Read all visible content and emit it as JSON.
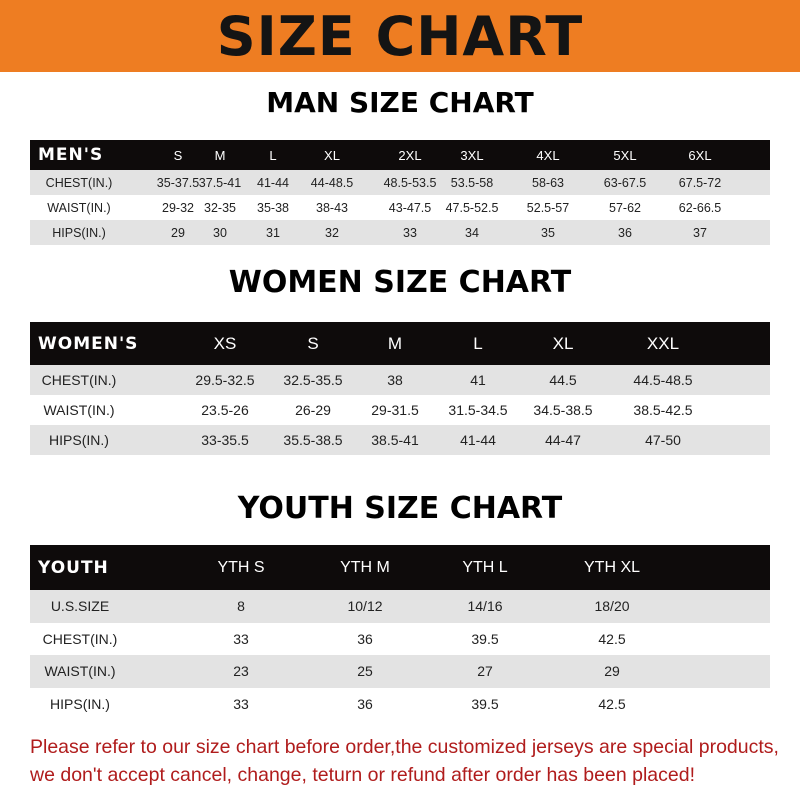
{
  "title": "SIZE CHART",
  "men": {
    "title": "MAN SIZE CHART",
    "header": [
      "MEN'S",
      "S",
      "M",
      "L",
      "XL",
      "2XL",
      "3XL",
      "4XL",
      "5XL",
      "6XL"
    ],
    "rows": [
      [
        "CHEST(IN.)",
        "35-37.5",
        "37.5-41",
        "41-44",
        "44-48.5",
        "48.5-53.5",
        "53.5-58",
        "58-63",
        "63-67.5",
        "67.5-72"
      ],
      [
        "WAIST(IN.)",
        "29-32",
        "32-35",
        "35-38",
        "38-43",
        "43-47.5",
        "47.5-52.5",
        "52.5-57",
        "57-62",
        "62-66.5"
      ],
      [
        "HIPS(IN.)",
        "29",
        "30",
        "31",
        "32",
        "33",
        "34",
        "35",
        "36",
        "37"
      ]
    ]
  },
  "women": {
    "title": "WOMEN SIZE CHART",
    "header": [
      "WOMEN'S",
      "XS",
      "S",
      "M",
      "L",
      "XL",
      "XXL"
    ],
    "rows": [
      [
        "CHEST(IN.)",
        "29.5-32.5",
        "32.5-35.5",
        "38",
        "41",
        "44.5",
        "44.5-48.5"
      ],
      [
        "WAIST(IN.)",
        "23.5-26",
        "26-29",
        "29-31.5",
        "31.5-34.5",
        "34.5-38.5",
        "38.5-42.5"
      ],
      [
        "HIPS(IN.)",
        "33-35.5",
        "35.5-38.5",
        "38.5-41",
        "41-44",
        "44-47",
        "47-50"
      ]
    ]
  },
  "youth": {
    "title": "YOUTH SIZE CHART",
    "header": [
      "YOUTH",
      "YTH S",
      "YTH M",
      "YTH L",
      "YTH XL"
    ],
    "rows": [
      [
        "U.S.SIZE",
        "8",
        "10/12",
        "14/16",
        "18/20"
      ],
      [
        "CHEST(IN.)",
        "33",
        "36",
        "39.5",
        "42.5"
      ],
      [
        "WAIST(IN.)",
        "23",
        "25",
        "27",
        "29"
      ],
      [
        "HIPS(IN.)",
        "33",
        "36",
        "39.5",
        "42.5"
      ]
    ]
  },
  "note": [
    "Please refer to our size chart before order,the customized jerseys are special products,",
    "we don't accept cancel, change, teturn or refund after order has been placed!"
  ],
  "colors": {
    "banner": "#ee7d22",
    "header_row": "#0e0b0b",
    "stripe": "#e3e3e3",
    "note": "#b01c1c"
  }
}
